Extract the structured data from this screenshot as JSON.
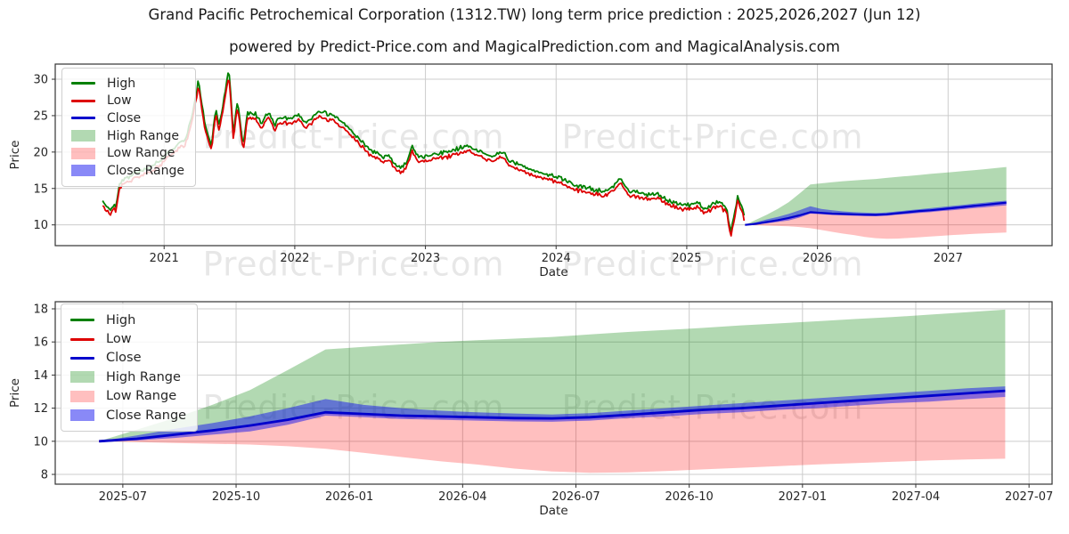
{
  "header": {
    "title": "Grand Pacific Petrochemical Corporation (1312.TW) long term price prediction : 2025,2026,2027 (Jun 12)",
    "subtitle": "powered by Predict-Price.com and MagicalPrediction.com and MagicalAnalysis.com"
  },
  "watermark": {
    "text": "Predict-Price.com",
    "color": "#e7e7e7"
  },
  "colors": {
    "high_line": "#008000",
    "low_line": "#dd0000",
    "close_line": "#0000cc",
    "high_range_fill": "rgba(0,128,0,0.30)",
    "low_range_fill": "rgba(255,0,0,0.25)",
    "close_range_fill": "rgba(20,20,240,0.50)",
    "grid": "#cccccc",
    "spine": "#333333",
    "text": "#262626"
  },
  "legend": {
    "items": [
      {
        "label": "High",
        "type": "line",
        "color": "#008000"
      },
      {
        "label": "Low",
        "type": "line",
        "color": "#dd0000"
      },
      {
        "label": "Close",
        "type": "line",
        "color": "#0000cc"
      },
      {
        "label": "High Range",
        "type": "patch",
        "color": "rgba(0,128,0,0.30)"
      },
      {
        "label": "Low Range",
        "type": "patch",
        "color": "rgba(255,0,0,0.25)"
      },
      {
        "label": "Close Range",
        "type": "patch",
        "color": "rgba(20,20,240,0.50)"
      }
    ]
  },
  "chart_data": [
    {
      "type": "line",
      "role": "top",
      "xlabel": "Date",
      "ylabel": "Price",
      "x_unit": "months since 2020-07-12",
      "x_range": [
        -4.35,
        87.2
      ],
      "y_range": [
        7.15,
        32.08
      ],
      "yticks": [
        10,
        15,
        20,
        25,
        30
      ],
      "xticks": [
        {
          "t": 5.65,
          "label": "2021"
        },
        {
          "t": 17.65,
          "label": "2022"
        },
        {
          "t": 29.65,
          "label": "2023"
        },
        {
          "t": 41.65,
          "label": "2024"
        },
        {
          "t": 53.65,
          "label": "2025"
        },
        {
          "t": 65.65,
          "label": "2026"
        },
        {
          "t": 77.65,
          "label": "2027"
        }
      ],
      "grid": true,
      "legend_position": "upper-left",
      "historical_note": "monthly anchor closes read from pixels; daily wiggle synthesized deterministically",
      "historical_anchors": [
        [
          0,
          13.0
        ],
        [
          0.3,
          12.4
        ],
        [
          0.65,
          11.8
        ],
        [
          1.0,
          12.5
        ],
        [
          1.25,
          12.1
        ],
        [
          1.5,
          15.3
        ],
        [
          2,
          16.0
        ],
        [
          3,
          16.8
        ],
        [
          4,
          17.3
        ],
        [
          5,
          18.2
        ],
        [
          6,
          19.6
        ],
        [
          7,
          20.8
        ],
        [
          7.6,
          21.3
        ],
        [
          8.3,
          25.0
        ],
        [
          8.8,
          29.5
        ],
        [
          9.4,
          23.5
        ],
        [
          10.0,
          20.5
        ],
        [
          10.4,
          25.8
        ],
        [
          10.7,
          23.2
        ],
        [
          11.2,
          27.5
        ],
        [
          11.6,
          31.2
        ],
        [
          12.0,
          22.2
        ],
        [
          12.4,
          26.6
        ],
        [
          12.9,
          20.4
        ],
        [
          13.3,
          24.9
        ],
        [
          14,
          25.0
        ],
        [
          14.6,
          23.6
        ],
        [
          15.2,
          25.2
        ],
        [
          15.8,
          23.4
        ],
        [
          16.2,
          24.4
        ],
        [
          17,
          24.3
        ],
        [
          18,
          24.8
        ],
        [
          18.6,
          23.7
        ],
        [
          19.2,
          24.3
        ],
        [
          19.8,
          25.1
        ],
        [
          20.6,
          24.9
        ],
        [
          21.4,
          24.6
        ],
        [
          22,
          23.8
        ],
        [
          23,
          22.3
        ],
        [
          23.6,
          21.4
        ],
        [
          24,
          20.9
        ],
        [
          24.6,
          19.8
        ],
        [
          25.2,
          19.6
        ],
        [
          25.8,
          18.9
        ],
        [
          26.3,
          19.2
        ],
        [
          27,
          17.9
        ],
        [
          27.5,
          17.5
        ],
        [
          28,
          18.5
        ],
        [
          28.4,
          20.4
        ],
        [
          29,
          19.0
        ],
        [
          30,
          19.2
        ],
        [
          31,
          19.5
        ],
        [
          32,
          19.8
        ],
        [
          33,
          20.3
        ],
        [
          33.5,
          20.6
        ],
        [
          34.2,
          19.9
        ],
        [
          35,
          19.4
        ],
        [
          36,
          19.2
        ],
        [
          36.7,
          19.7
        ],
        [
          37.5,
          18.4
        ],
        [
          38.2,
          18.0
        ],
        [
          39,
          17.4
        ],
        [
          40,
          17.0
        ],
        [
          41,
          16.5
        ],
        [
          42,
          16.2
        ],
        [
          43,
          15.3
        ],
        [
          44,
          14.9
        ],
        [
          45,
          14.6
        ],
        [
          46,
          14.3
        ],
        [
          46.8,
          14.9
        ],
        [
          47.6,
          16.1
        ],
        [
          48.3,
          14.4
        ],
        [
          49,
          14.2
        ],
        [
          50,
          13.8
        ],
        [
          51,
          14.0
        ],
        [
          51.8,
          13.2
        ],
        [
          53,
          12.5
        ],
        [
          54,
          12.4
        ],
        [
          54.7,
          12.8
        ],
        [
          55.3,
          11.8
        ],
        [
          56,
          12.6
        ],
        [
          56.6,
          12.9
        ],
        [
          57.3,
          12.1
        ],
        [
          57.7,
          8.6
        ],
        [
          58.3,
          13.5
        ],
        [
          58.8,
          12.0
        ],
        [
          59,
          10.15
        ]
      ],
      "prediction_ref": "chart_data[1].prediction"
    },
    {
      "type": "line",
      "role": "bottom",
      "xlabel": "Date",
      "ylabel": "Price",
      "x_unit": "months since 2025-06-12",
      "x_range": [
        -1.16,
        25.24
      ],
      "y_range": [
        7.41,
        18.43
      ],
      "yticks": [
        8,
        10,
        12,
        14,
        16,
        18
      ],
      "xticks": [
        {
          "t": 0.63,
          "label": "2025-07"
        },
        {
          "t": 3.63,
          "label": "2025-10"
        },
        {
          "t": 6.63,
          "label": "2026-01"
        },
        {
          "t": 9.63,
          "label": "2026-04"
        },
        {
          "t": 12.63,
          "label": "2026-07"
        },
        {
          "t": 15.63,
          "label": "2026-10"
        },
        {
          "t": 18.63,
          "label": "2027-01"
        },
        {
          "t": 21.63,
          "label": "2027-04"
        },
        {
          "t": 24.63,
          "label": "2027-07"
        }
      ],
      "grid": true,
      "legend_position": "upper-left",
      "prediction": {
        "months": [
          "2025-06",
          "2025-07",
          "2025-08",
          "2025-09",
          "2025-10",
          "2025-11",
          "2025-12",
          "2026-01",
          "2026-02",
          "2026-03",
          "2026-04",
          "2026-05",
          "2026-06",
          "2026-07",
          "2026-08",
          "2026-09",
          "2026-10",
          "2026-11",
          "2026-12",
          "2027-01",
          "2027-02",
          "2027-03",
          "2027-04",
          "2027-05",
          "2027-06"
        ],
        "close": [
          10.0,
          10.15,
          10.4,
          10.65,
          10.95,
          11.3,
          11.75,
          11.65,
          11.55,
          11.5,
          11.45,
          11.4,
          11.38,
          11.45,
          11.6,
          11.75,
          11.9,
          12.0,
          12.15,
          12.3,
          12.45,
          12.6,
          12.75,
          12.9,
          13.05
        ],
        "close_range_top": [
          10.0,
          10.35,
          10.75,
          11.1,
          11.5,
          12.0,
          12.55,
          12.2,
          12.0,
          11.85,
          11.75,
          11.68,
          11.62,
          11.7,
          11.85,
          12.0,
          12.15,
          12.3,
          12.45,
          12.6,
          12.75,
          12.9,
          13.05,
          13.2,
          13.32
        ],
        "close_range_bot": [
          10.0,
          10.05,
          10.2,
          10.4,
          10.6,
          11.0,
          11.55,
          11.45,
          11.35,
          11.3,
          11.25,
          11.2,
          11.18,
          11.25,
          11.4,
          11.5,
          11.65,
          11.75,
          11.9,
          12.0,
          12.15,
          12.3,
          12.4,
          12.55,
          12.68
        ],
        "high_range_top": [
          10.0,
          10.7,
          11.4,
          12.2,
          13.1,
          14.3,
          15.55,
          15.7,
          15.85,
          16.0,
          16.1,
          16.2,
          16.3,
          16.45,
          16.6,
          16.72,
          16.85,
          17.0,
          17.12,
          17.25,
          17.38,
          17.5,
          17.65,
          17.8,
          17.95
        ],
        "low_range_bottom": [
          10.0,
          9.95,
          9.9,
          9.85,
          9.8,
          9.7,
          9.55,
          9.3,
          9.05,
          8.8,
          8.6,
          8.35,
          8.18,
          8.1,
          8.12,
          8.2,
          8.3,
          8.4,
          8.5,
          8.6,
          8.68,
          8.76,
          8.84,
          8.9,
          8.95
        ]
      }
    }
  ]
}
